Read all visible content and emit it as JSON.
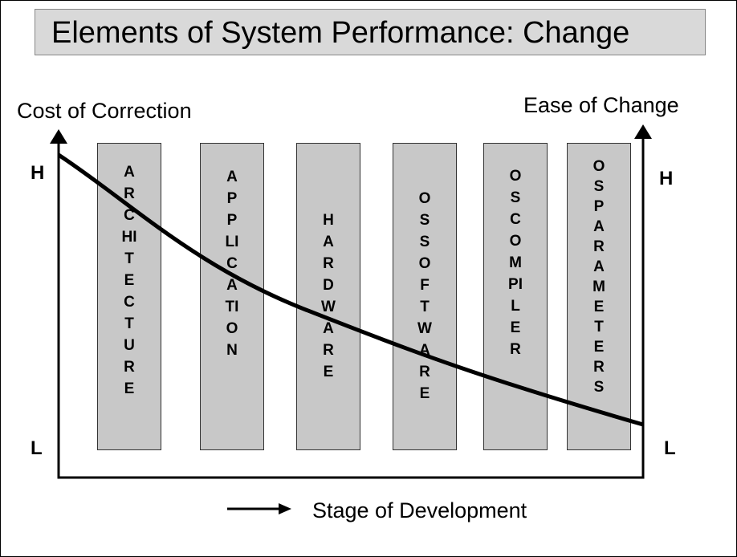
{
  "title": "Elements of System Performance: Change",
  "left_axis": {
    "label": "Cost of Correction",
    "high": "H",
    "low": "L"
  },
  "right_axis": {
    "label": "Ease of Change",
    "high": "H",
    "low": "L"
  },
  "x_axis": {
    "label": "Stage of Development"
  },
  "columns": [
    "ARCHITECTURE",
    "APPLICATION",
    "HARDWARE",
    "OS SOFTWARE",
    "OS COMPILER",
    "OS PARAMETERS"
  ]
}
